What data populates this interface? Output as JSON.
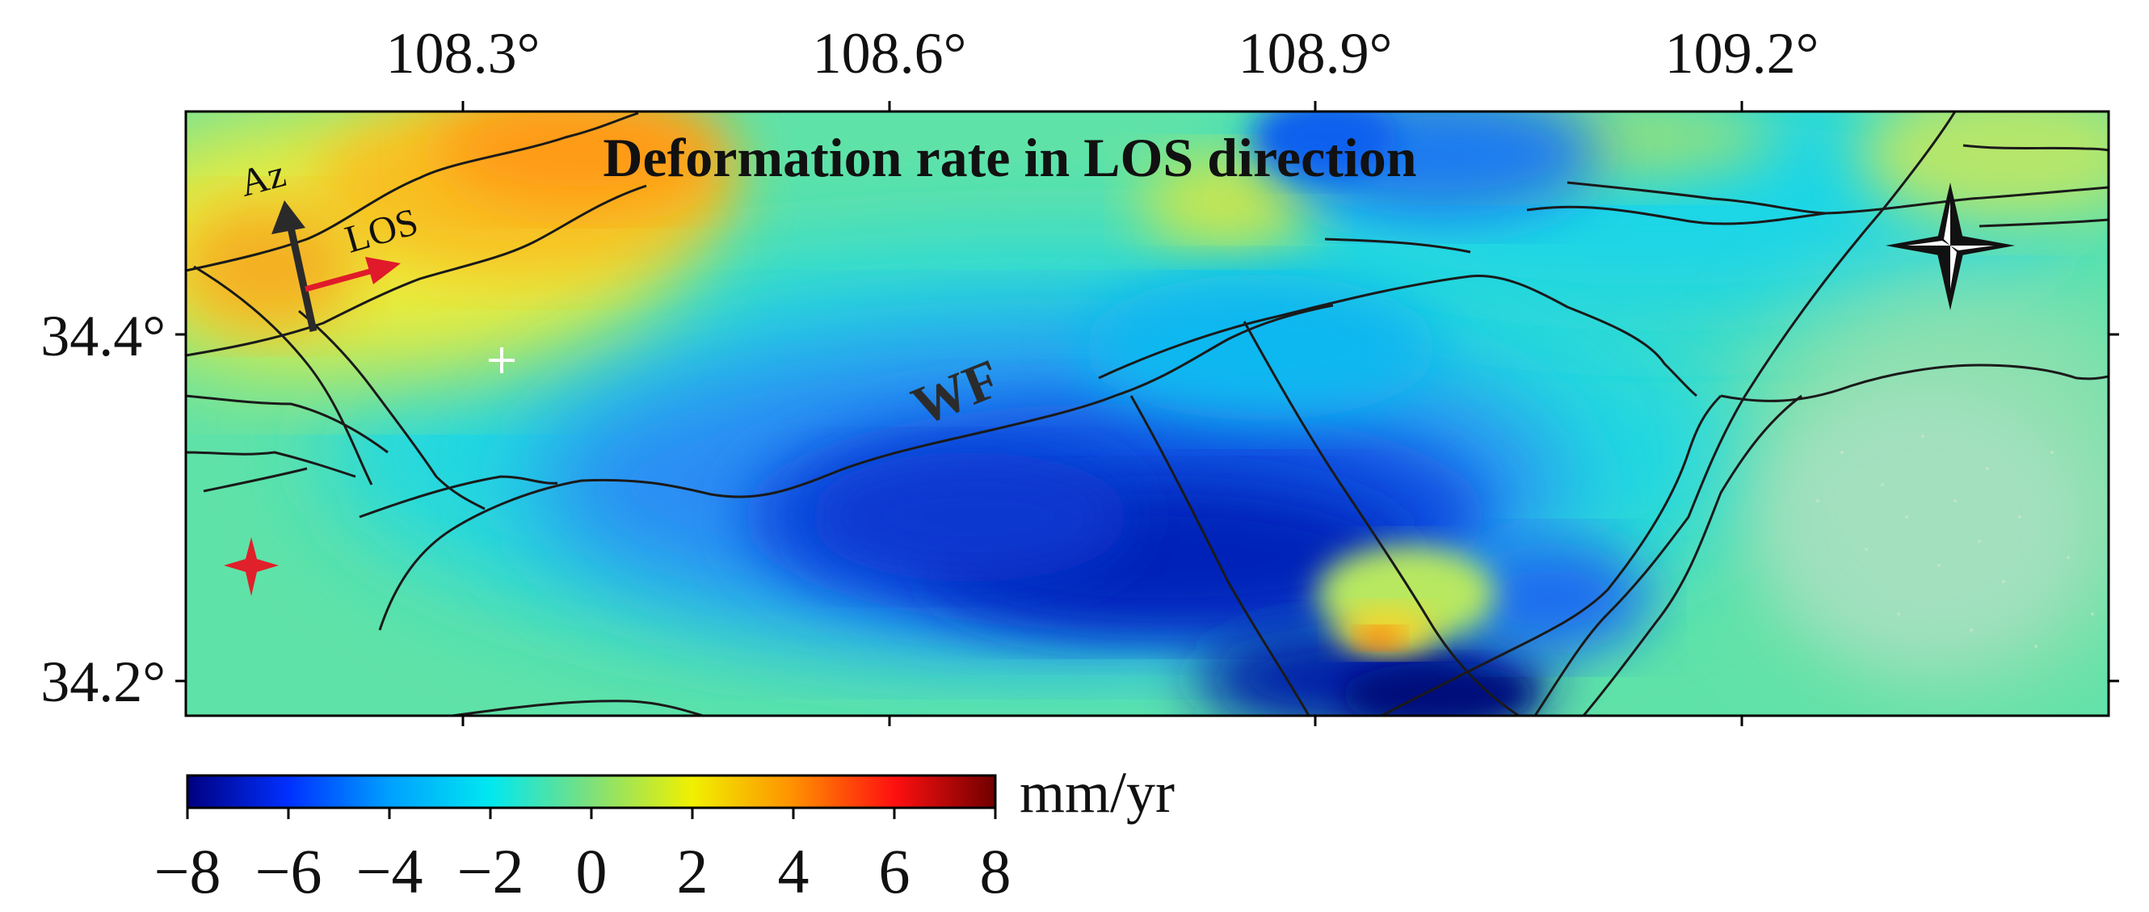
{
  "map": {
    "title": "Deformation rate in LOS direction",
    "fault_label": "WF",
    "arrow_labels": {
      "azimuth": "Az",
      "los": "LOS"
    },
    "x_ticks": [
      "108.3°",
      "108.6°",
      "108.9°",
      "109.2°"
    ],
    "y_ticks": [
      "34.4°",
      "34.2°"
    ],
    "markers": [
      "white-cross",
      "red-star",
      "north-compass-rose"
    ]
  },
  "colorbar": {
    "unit": "mm/yr",
    "min": -8,
    "max": 8,
    "tick_labels": [
      "−8",
      "−6",
      "−4",
      "−2",
      "0",
      "2",
      "4",
      "6",
      "8"
    ],
    "colors": [
      "#000080",
      "#0030ff",
      "#00a0ff",
      "#00e8f0",
      "#7ee07a",
      "#f0f000",
      "#ff9000",
      "#ff1010",
      "#700000"
    ]
  },
  "colors": {
    "uplift": "#ff9000",
    "subsidence": "#0018c0",
    "neutral": "#20d8d0",
    "fault_lines": "#1a1a1a",
    "los_arrow": "#e01a2a",
    "az_arrow": "#222222"
  }
}
